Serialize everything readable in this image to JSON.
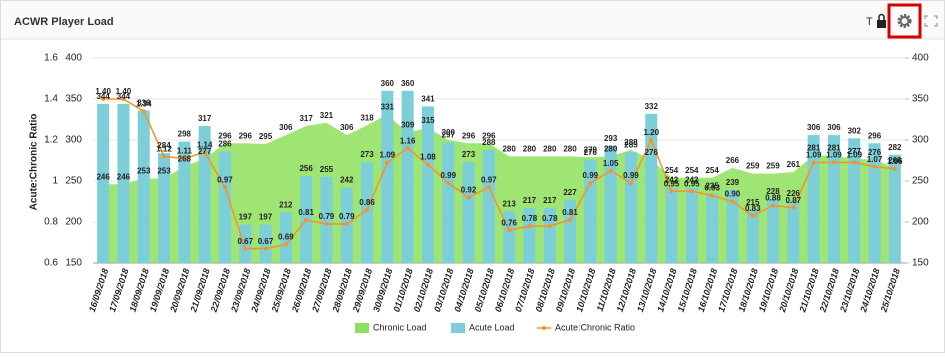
{
  "header": {
    "title": "ACWR Player Load",
    "icon_text": "T"
  },
  "chart_data": {
    "type": "combo",
    "y_label": "Acute:Chronic Ratio",
    "categories": [
      "16/09/2018",
      "17/09/2018",
      "18/09/2018",
      "19/09/2018",
      "20/09/2018",
      "21/09/2018",
      "22/09/2018",
      "23/09/2018",
      "24/09/2018",
      "25/09/2018",
      "26/09/2018",
      "27/09/2018",
      "28/09/2018",
      "29/09/2018",
      "30/09/2018",
      "01/10/2018",
      "02/10/2018",
      "03/10/2018",
      "04/10/2018",
      "05/10/2018",
      "06/10/2018",
      "07/10/2018",
      "08/10/2018",
      "09/10/2018",
      "10/10/2018",
      "11/10/2018",
      "12/10/2018",
      "13/10/2018",
      "14/10/2018",
      "15/10/2018",
      "16/10/2018",
      "17/10/2018",
      "18/10/2018",
      "19/10/2018",
      "20/10/2018",
      "21/10/2018",
      "22/10/2018",
      "23/10/2018",
      "24/10/2018",
      "25/10/2018"
    ],
    "ylim": [
      0.6,
      1.6
    ],
    "yticks": [
      0.6,
      0.8,
      1,
      1.2,
      1.4,
      1.6
    ],
    "y2lim": [
      150,
      400
    ],
    "y2ticks": [
      150,
      200,
      250,
      300,
      350,
      400
    ],
    "legend": "bottom",
    "series": [
      {
        "name": "Chronic Load",
        "kind": "area",
        "axis": "y2",
        "color": "#8ee05a",
        "values": [
          246,
          246,
          253,
          253,
          268,
          277,
          296,
          296,
          295,
          306,
          317,
          321,
          306,
          318,
          331,
          309,
          315,
          300,
          296,
          296,
          280,
          280,
          280,
          280,
          279,
          280,
          288,
          276,
          254,
          254,
          254,
          266,
          259,
          259,
          261,
          281,
          281,
          277,
          276,
          266
        ]
      },
      {
        "name": "Acute Load",
        "kind": "bar",
        "axis": "y2",
        "color": "#7ccfd8",
        "values": [
          344,
          344,
          336,
          284,
          298,
          317,
          286,
          197,
          197,
          212,
          256,
          255,
          242,
          273,
          360,
          360,
          341,
          297,
          273,
          288,
          213,
          217,
          217,
          227,
          276,
          293,
          285,
          332,
          242,
          242,
          235,
          239,
          215,
          228,
          226,
          306,
          306,
          302,
          296,
          282
        ]
      },
      {
        "name": "Acute:Chronic Ratio",
        "kind": "line",
        "color": "#f7931e",
        "values": [
          1.4,
          1.4,
          1.34,
          1.12,
          1.11,
          1.14,
          0.97,
          0.67,
          0.67,
          0.69,
          0.81,
          0.79,
          0.79,
          0.86,
          1.09,
          1.16,
          1.08,
          0.99,
          0.92,
          0.97,
          0.76,
          0.78,
          0.78,
          0.81,
          0.99,
          1.05,
          0.99,
          1.2,
          0.95,
          0.95,
          0.93,
          0.9,
          0.83,
          0.88,
          0.87,
          1.09,
          1.09,
          1.09,
          1.07,
          1.06
        ],
        "value_labels": [
          "1.40",
          "1.40",
          "1.34",
          "1.12",
          "1.11",
          "1.14",
          "0.97",
          "0.67",
          "0.67",
          "0.69",
          "0.81",
          "0.79",
          "0.79",
          "0.86",
          "1.09",
          "1.16",
          "1.08",
          "0.99",
          "0.92",
          "0.97",
          "0.76",
          "0.78",
          "0.78",
          "0.81",
          "0.99",
          "1.05",
          "0.99",
          "1.20",
          "0.95",
          "0.95",
          "0.93",
          "0.90",
          "0.83",
          "0.88",
          "0.87",
          "1.09",
          "1.09",
          "1.09",
          "1.07",
          "1.06"
        ]
      }
    ]
  }
}
